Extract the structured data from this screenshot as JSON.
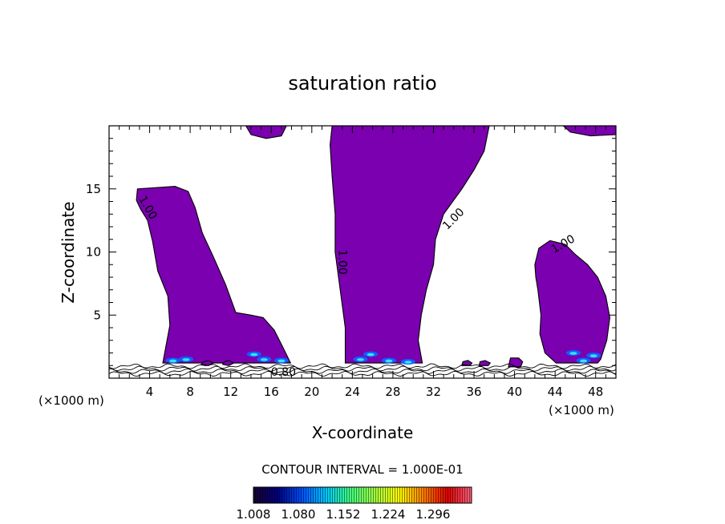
{
  "chart_data": {
    "type": "contour",
    "title": "saturation ratio",
    "xlabel": "X-coordinate",
    "ylabel": "Z-coordinate",
    "x_unit_left": "(×1000 m)",
    "x_unit_right": "(×1000 m)",
    "xlim": [
      0,
      50
    ],
    "ylim": [
      0,
      20
    ],
    "x_ticks": [
      4,
      8,
      12,
      16,
      20,
      24,
      28,
      32,
      36,
      40,
      44,
      48
    ],
    "y_ticks": [
      5,
      10,
      15
    ],
    "contour_interval_text": "CONTOUR INTERVAL = 1.000E-01",
    "contour_labels": [
      {
        "text": "1.00",
        "x": 3.8,
        "z": 13.5,
        "angle": 60
      },
      {
        "text": "1.00",
        "x": 23.0,
        "z": 9.2,
        "angle": 90
      },
      {
        "text": "1.00",
        "x": 34.0,
        "z": 12.6,
        "angle": -45
      },
      {
        "text": "1.00",
        "x": 44.8,
        "z": 10.6,
        "angle": -30
      },
      {
        "text": "0.80",
        "x": 17.2,
        "z": 0.45,
        "angle": 0
      }
    ],
    "colorbar": {
      "ticks": [
        "1.008",
        "1.080",
        "1.152",
        "1.224",
        "1.296"
      ],
      "colors": [
        "#1a0030",
        "#000080",
        "#0050ff",
        "#00c8ff",
        "#40ff80",
        "#a0ff40",
        "#ffff00",
        "#ff8000",
        "#e00000",
        "#ff6080"
      ]
    },
    "fill_color": "#7a00b0",
    "regions": [
      {
        "name": "top-cap-left",
        "poly": [
          [
            13.5,
            20
          ],
          [
            17.5,
            20
          ],
          [
            17.0,
            19.2
          ],
          [
            15.5,
            19.0
          ],
          [
            14.0,
            19.3
          ]
        ]
      },
      {
        "name": "cloud-left",
        "poly": [
          [
            2.8,
            15.0
          ],
          [
            6.5,
            15.2
          ],
          [
            7.8,
            14.8
          ],
          [
            8.5,
            13.5
          ],
          [
            9.2,
            11.5
          ],
          [
            10.3,
            9.6
          ],
          [
            11.5,
            7.4
          ],
          [
            12.5,
            5.2
          ],
          [
            14.0,
            5.0
          ],
          [
            15.2,
            4.8
          ],
          [
            16.3,
            3.8
          ],
          [
            17.3,
            2.2
          ],
          [
            17.9,
            1.2
          ],
          [
            5.3,
            1.2
          ],
          [
            5.6,
            2.5
          ],
          [
            6.0,
            4.2
          ],
          [
            5.8,
            6.5
          ],
          [
            4.8,
            8.5
          ],
          [
            4.3,
            10.8
          ],
          [
            3.8,
            12.5
          ],
          [
            3.1,
            13.4
          ],
          [
            2.7,
            14.1
          ]
        ]
      },
      {
        "name": "cloud-center",
        "poly": [
          [
            22.0,
            20
          ],
          [
            37.5,
            20
          ],
          [
            37.0,
            18.0
          ],
          [
            36.0,
            16.5
          ],
          [
            34.8,
            15.0
          ],
          [
            33.0,
            13.0
          ],
          [
            32.2,
            11.0
          ],
          [
            32.0,
            9.0
          ],
          [
            31.3,
            7.0
          ],
          [
            30.8,
            5.0
          ],
          [
            30.5,
            3.0
          ],
          [
            30.9,
            1.2
          ],
          [
            23.3,
            1.2
          ],
          [
            23.3,
            4.0
          ],
          [
            22.8,
            7.0
          ],
          [
            22.3,
            10.0
          ],
          [
            22.3,
            13.0
          ],
          [
            22.0,
            16.0
          ],
          [
            21.8,
            18.5
          ]
        ]
      },
      {
        "name": "top-cap-right",
        "poly": [
          [
            44.8,
            20
          ],
          [
            50,
            20
          ],
          [
            50,
            19.3
          ],
          [
            47.5,
            19.2
          ],
          [
            45.5,
            19.5
          ]
        ]
      },
      {
        "name": "cloud-right",
        "poly": [
          [
            42.0,
            9.0
          ],
          [
            42.4,
            10.3
          ],
          [
            43.5,
            10.9
          ],
          [
            45.0,
            10.6
          ],
          [
            46.0,
            9.8
          ],
          [
            47.2,
            9.0
          ],
          [
            48.2,
            8.0
          ],
          [
            49.0,
            6.5
          ],
          [
            49.4,
            4.8
          ],
          [
            49.1,
            3.0
          ],
          [
            48.5,
            1.5
          ],
          [
            48.2,
            1.2
          ],
          [
            44.1,
            1.2
          ],
          [
            43.0,
            2.0
          ],
          [
            42.5,
            3.5
          ],
          [
            42.6,
            5.0
          ],
          [
            42.3,
            7.0
          ],
          [
            42.1,
            8.0
          ]
        ]
      },
      {
        "name": "blob-10",
        "poly": [
          [
            9.1,
            1.1
          ],
          [
            9.8,
            1.0
          ],
          [
            10.3,
            1.2
          ],
          [
            9.8,
            1.4
          ],
          [
            9.3,
            1.3
          ]
        ]
      },
      {
        "name": "blob-11",
        "poly": [
          [
            11.2,
            1.1
          ],
          [
            11.8,
            1.0
          ],
          [
            12.3,
            1.2
          ],
          [
            11.8,
            1.4
          ],
          [
            11.4,
            1.3
          ]
        ]
      },
      {
        "name": "blob-35",
        "poly": [
          [
            34.8,
            1.0
          ],
          [
            35.6,
            1.0
          ],
          [
            35.8,
            1.2
          ],
          [
            35.4,
            1.4
          ],
          [
            34.9,
            1.3
          ]
        ]
      },
      {
        "name": "blob-36",
        "poly": [
          [
            36.5,
            1.0
          ],
          [
            37.4,
            1.0
          ],
          [
            37.6,
            1.2
          ],
          [
            37.1,
            1.4
          ],
          [
            36.6,
            1.3
          ]
        ]
      },
      {
        "name": "blob-40",
        "poly": [
          [
            39.4,
            0.9
          ],
          [
            40.6,
            0.9
          ],
          [
            40.8,
            1.3
          ],
          [
            40.4,
            1.6
          ],
          [
            39.6,
            1.6
          ]
        ]
      }
    ],
    "hotspots": [
      {
        "x": 6.3,
        "z": 1.4
      },
      {
        "x": 7.6,
        "z": 1.5
      },
      {
        "x": 14.3,
        "z": 1.9
      },
      {
        "x": 15.3,
        "z": 1.5
      },
      {
        "x": 17.0,
        "z": 1.4
      },
      {
        "x": 24.8,
        "z": 1.5
      },
      {
        "x": 25.8,
        "z": 1.9
      },
      {
        "x": 27.6,
        "z": 1.4
      },
      {
        "x": 29.5,
        "z": 1.3
      },
      {
        "x": 45.8,
        "z": 2.0
      },
      {
        "x": 46.8,
        "z": 1.4
      },
      {
        "x": 47.8,
        "z": 1.8
      }
    ],
    "surface_contours_z": [
      0.35,
      0.55,
      0.75,
      0.95
    ]
  }
}
